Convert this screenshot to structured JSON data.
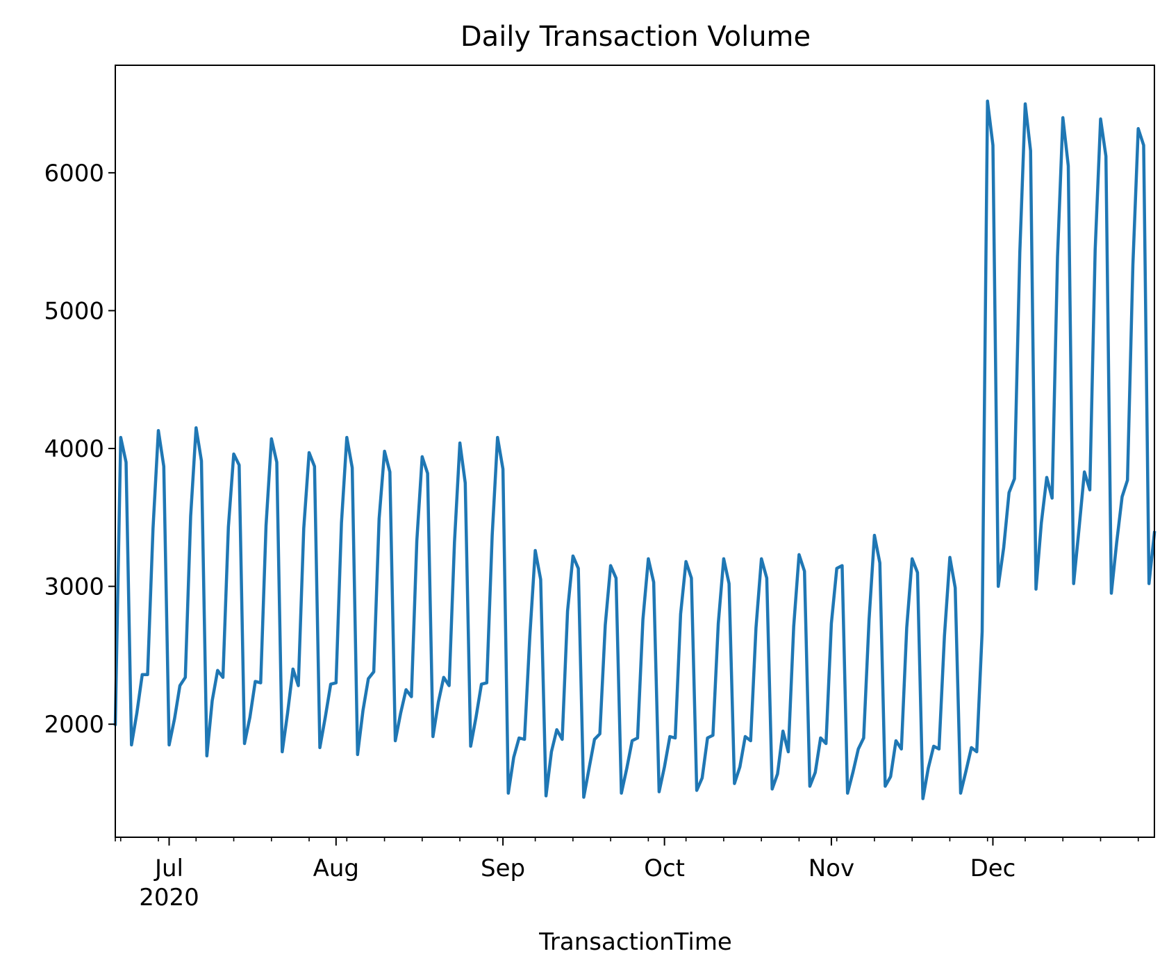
{
  "chart_data": {
    "type": "line",
    "title": "Daily Transaction Volume",
    "xlabel": "TransactionTime",
    "ylabel": "",
    "x_start": "2020-06-21",
    "x_end": "2020-12-31",
    "xlim": [
      "2020-06-21",
      "2020-12-31"
    ],
    "ylim": [
      1180,
      6780
    ],
    "y_ticks": [
      2000,
      3000,
      4000,
      5000,
      6000
    ],
    "y_tick_labels": [
      "2000",
      "3000",
      "4000",
      "5000",
      "6000"
    ],
    "x_major_ticks": [
      {
        "date": "2020-07-01",
        "label": "Jul",
        "sublabel": "2020"
      },
      {
        "date": "2020-08-01",
        "label": "Aug"
      },
      {
        "date": "2020-09-01",
        "label": "Sep"
      },
      {
        "date": "2020-10-01",
        "label": "Oct"
      },
      {
        "date": "2020-11-01",
        "label": "Nov"
      },
      {
        "date": "2020-12-01",
        "label": "Dec"
      }
    ],
    "x_minor_ticks": [
      "2020-06-21",
      "2020-06-22",
      "2020-06-29",
      "2020-07-06",
      "2020-07-13",
      "2020-07-20",
      "2020-07-27",
      "2020-08-03",
      "2020-08-10",
      "2020-08-17",
      "2020-08-24",
      "2020-08-31",
      "2020-09-07",
      "2020-09-14",
      "2020-09-21",
      "2020-09-28",
      "2020-10-05",
      "2020-10-12",
      "2020-10-19",
      "2020-10-26",
      "2020-11-02",
      "2020-11-09",
      "2020-11-16",
      "2020-11-23",
      "2020-11-30",
      "2020-12-07",
      "2020-12-14",
      "2020-12-21",
      "2020-12-28"
    ],
    "grid": false,
    "line_color": "#1f77b4",
    "series": [
      {
        "values": [
          2000,
          4080,
          3900,
          1850,
          2080,
          2360,
          2360,
          3420,
          4130,
          3870,
          1850,
          2040,
          2280,
          2340,
          3510,
          4150,
          3910,
          1770,
          2170,
          2390,
          2340,
          3430,
          3960,
          3880,
          1860,
          2050,
          2310,
          2300,
          3440,
          4070,
          3900,
          1800,
          2080,
          2400,
          2280,
          3420,
          3970,
          3870,
          1830,
          2050,
          2290,
          2300,
          3460,
          4080,
          3860,
          1780,
          2100,
          2330,
          2380,
          3490,
          3980,
          3830,
          1880,
          2080,
          2250,
          2200,
          3330,
          3940,
          3820,
          1910,
          2160,
          2340,
          2280,
          3320,
          4040,
          3750,
          1840,
          2050,
          2290,
          2300,
          3370,
          4080,
          3850,
          1500,
          1760,
          1900,
          1890,
          2640,
          3260,
          3050,
          1480,
          1800,
          1960,
          1890,
          2820,
          3220,
          3130,
          1470,
          1680,
          1890,
          1930,
          2720,
          3150,
          3060,
          1500,
          1680,
          1880,
          1900,
          2760,
          3200,
          3030,
          1510,
          1690,
          1910,
          1900,
          2800,
          3180,
          3060,
          1520,
          1610,
          1900,
          1920,
          2730,
          3200,
          3020,
          1570,
          1690,
          1910,
          1880,
          2700,
          3200,
          3060,
          1530,
          1640,
          1950,
          1800,
          2710,
          3230,
          3110,
          1550,
          1650,
          1900,
          1860,
          2730,
          3130,
          3150,
          1500,
          1650,
          1820,
          1900,
          2760,
          3370,
          3170,
          1550,
          1620,
          1880,
          1820,
          2700,
          3200,
          3100,
          1460,
          1680,
          1840,
          1820,
          2640,
          3210,
          2990,
          1500,
          1660,
          1830,
          1800,
          2670,
          6520,
          6200,
          3000,
          3280,
          3680,
          3780,
          5420,
          6500,
          6160,
          2980,
          3460,
          3790,
          3640,
          5390,
          6400,
          6050,
          3020,
          3420,
          3830,
          3700,
          5440,
          6390,
          6120,
          2950,
          3320,
          3650,
          3770,
          5330,
          6320,
          6200,
          3020,
          3390
        ]
      }
    ]
  }
}
